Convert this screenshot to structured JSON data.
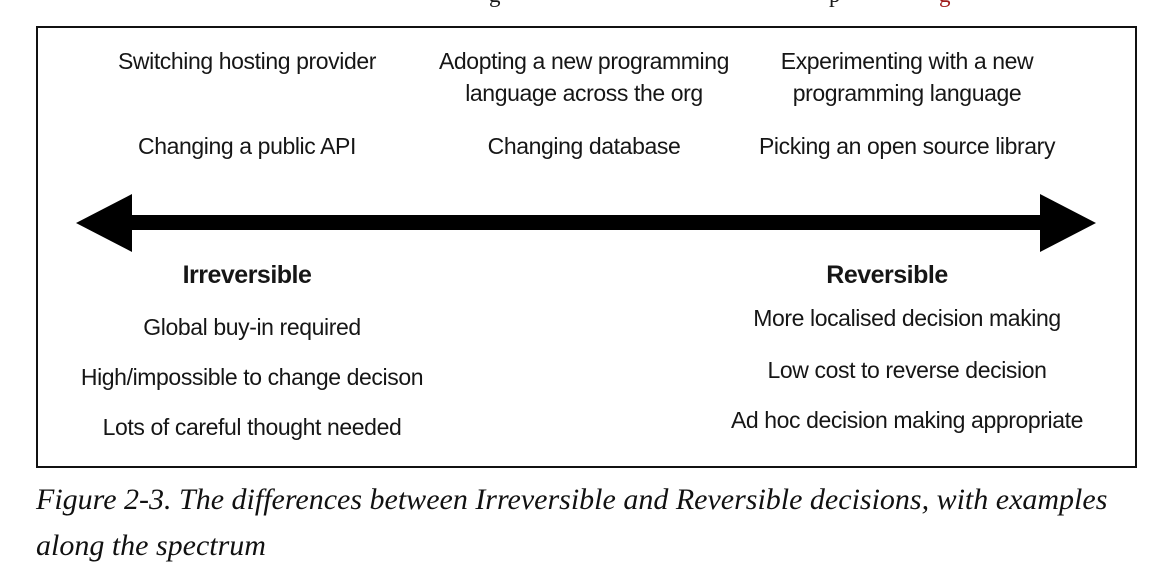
{
  "top_cropped_line": {
    "description": "bottom descenders of a cut-off paragraph line above the figure",
    "fragments": [
      {
        "char": "g",
        "color": "#1a1a1a"
      },
      {
        "char": "p",
        "color": "#1a1a1a"
      },
      {
        "char": "g",
        "color": "#a01c1c"
      }
    ]
  },
  "diagram": {
    "examples": {
      "left": [
        "Switching hosting provider",
        "Changing a public API"
      ],
      "middle": [
        "Adopting a new programming language across the org",
        "Changing database"
      ],
      "right": [
        "Experimenting with a new programming language",
        "Picking an open source library"
      ]
    },
    "spectrum": {
      "left_label": "Irreversible",
      "right_label": "Reversible"
    },
    "irreversible_traits": [
      "Global buy-in required",
      "High/impossible to change decison",
      "Lots of careful thought needed"
    ],
    "reversible_traits": [
      "More localised decision making",
      "Low cost to reverse decision",
      "Ad hoc decision making appropriate"
    ]
  },
  "caption": {
    "text": "Figure 2-3. The differences between Irreversible and Reversible decisions, with examples along the spectrum"
  },
  "colors": {
    "text": "#161616",
    "arrow": "#000000",
    "panel_border": "#111111",
    "link_red": "#a01c1c"
  }
}
